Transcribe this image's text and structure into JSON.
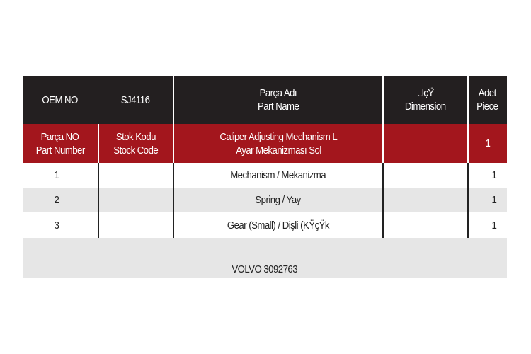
{
  "header": {
    "oem_label": "OEM NO",
    "oem_value": "SJ4116",
    "part_name_tr": "Parça Adı",
    "part_name_en": "Part Name",
    "dimension_tr": "..lçŸ",
    "dimension_en": "Dimension",
    "piece_tr": "Adet",
    "piece_en": "Piece"
  },
  "subheader": {
    "part_no_tr": "Parça NO",
    "part_no_en": "Part Number",
    "stock_tr": "Stok Kodu",
    "stock_en": "Stock Code",
    "name_en": "Caliper Adjusting Mechanism L",
    "name_tr": "Ayar Mekanizması Sol",
    "dimension": "",
    "piece": "1"
  },
  "rows": [
    {
      "no": "1",
      "stock": "",
      "name": "Mechanism / Mekanizma",
      "dimension": "",
      "piece": "1"
    },
    {
      "no": "2",
      "stock": "",
      "name": "Spring / Yay",
      "dimension": "",
      "piece": "1"
    },
    {
      "no": "3",
      "stock": "",
      "name": "Gear (Small) / Dişli (KŸçŸk",
      "dimension": "",
      "piece": "1"
    }
  ],
  "footer": {
    "reference": "VOLVO 3092763"
  },
  "colors": {
    "header_bg": "#231f20",
    "accent_red": "#a3161d",
    "stripe_gray": "#e6e6e6"
  }
}
